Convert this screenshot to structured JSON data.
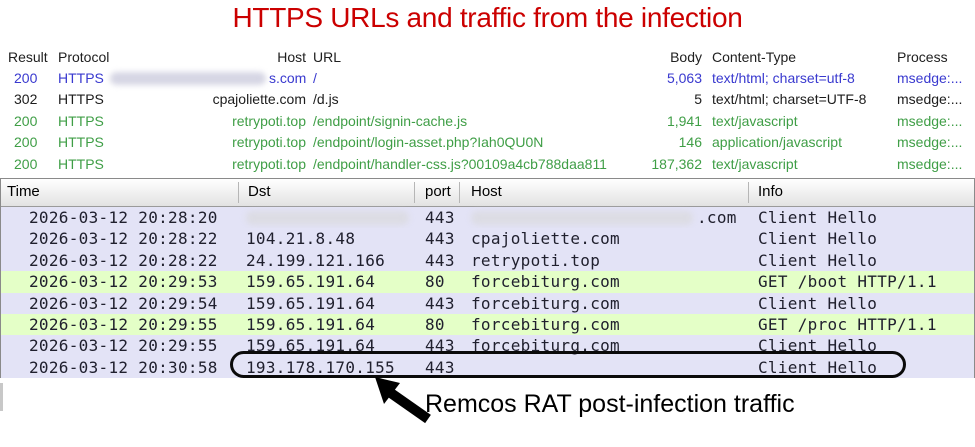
{
  "title": "HTTPS URLs and traffic from the infection",
  "annotation": "Remcos RAT post-infection traffic",
  "colors": {
    "title_red": "#CB0000",
    "fiddler_blue": "#3939CF",
    "fiddler_black": "#1C1C1C",
    "fiddler_green": "#3F9E46",
    "row_lavender": "#E3E3F6",
    "row_green": "#E4FFC7",
    "packet_text": "#20202E"
  },
  "fiddler": {
    "columns": [
      "Result",
      "Protocol",
      "Host",
      "URL",
      "Body",
      "Content-Type",
      "Process"
    ],
    "rows": [
      {
        "result": "200",
        "protocol": "HTTPS",
        "host": "",
        "host_redacted": true,
        "host_visible": "s.com",
        "url": "/",
        "body": "5,063",
        "content_type": "text/html; charset=utf-8",
        "process": "msedge:...",
        "color": "blue"
      },
      {
        "result": "302",
        "protocol": "HTTPS",
        "host": "cpajoliette.com",
        "host_redacted": false,
        "host_visible": "",
        "url": "/d.js",
        "body": "5",
        "content_type": "text/html; charset=UTF-8",
        "process": "msedge:...",
        "color": "black"
      },
      {
        "result": "200",
        "protocol": "HTTPS",
        "host": "retrypoti.top",
        "host_redacted": false,
        "host_visible": "",
        "url": "/endpoint/signin-cache.js",
        "body": "1,941",
        "content_type": "text/javascript",
        "process": "msedge:...",
        "color": "green"
      },
      {
        "result": "200",
        "protocol": "HTTPS",
        "host": "retrypoti.top",
        "host_redacted": false,
        "host_visible": "",
        "url": "/endpoint/login-asset.php?Iah0QU0N",
        "body": "146",
        "content_type": "application/javascript",
        "process": "msedge:...",
        "color": "green"
      },
      {
        "result": "200",
        "protocol": "HTTPS",
        "host": "retrypoti.top",
        "host_redacted": false,
        "host_visible": "",
        "url": "/endpoint/handler-css.js?00109a4cb788daa811",
        "body": "187,362",
        "content_type": "text/javascript",
        "process": "msedge:...",
        "color": "green"
      }
    ]
  },
  "wireshark": {
    "columns": [
      "Time",
      "Dst",
      "port",
      "Host",
      "Info"
    ],
    "rows": [
      {
        "time": "2026-03-12 20:28:20",
        "dst": "",
        "dst_redacted": true,
        "port": "443",
        "host": "",
        "host_redacted": true,
        "host_visible": ".com",
        "info": "Client Hello",
        "bg": "lavender",
        "circled": false
      },
      {
        "time": "2026-03-12 20:28:22",
        "dst": "104.21.8.48",
        "dst_redacted": false,
        "port": "443",
        "host": "cpajoliette.com",
        "host_redacted": false,
        "host_visible": "",
        "info": "Client Hello",
        "bg": "lavender",
        "circled": false
      },
      {
        "time": "2026-03-12 20:28:22",
        "dst": "24.199.121.166",
        "dst_redacted": false,
        "port": "443",
        "host": "retrypoti.top",
        "host_redacted": false,
        "host_visible": "",
        "info": "Client Hello",
        "bg": "lavender",
        "circled": false
      },
      {
        "time": "2026-03-12 20:29:53",
        "dst": "159.65.191.64",
        "dst_redacted": false,
        "port": "80",
        "host": "forcebiturg.com",
        "host_redacted": false,
        "host_visible": "",
        "info": "GET /boot HTTP/1.1",
        "bg": "green",
        "circled": false
      },
      {
        "time": "2026-03-12 20:29:54",
        "dst": "159.65.191.64",
        "dst_redacted": false,
        "port": "443",
        "host": "forcebiturg.com",
        "host_redacted": false,
        "host_visible": "",
        "info": "Client Hello",
        "bg": "lavender",
        "circled": false
      },
      {
        "time": "2026-03-12 20:29:55",
        "dst": "159.65.191.64",
        "dst_redacted": false,
        "port": "80",
        "host": "forcebiturg.com",
        "host_redacted": false,
        "host_visible": "",
        "info": "GET /proc HTTP/1.1",
        "bg": "green",
        "circled": false
      },
      {
        "time": "2026-03-12 20:29:55",
        "dst": "159.65.191.64",
        "dst_redacted": false,
        "port": "443",
        "host": "forcebiturg.com",
        "host_redacted": false,
        "host_visible": "",
        "info": "Client Hello",
        "bg": "lavender",
        "circled": false
      },
      {
        "time": "2026-03-12 20:30:58",
        "dst": "193.178.170.155",
        "dst_redacted": false,
        "port": "443",
        "host": "",
        "host_redacted": false,
        "host_visible": "",
        "info": "Client Hello",
        "bg": "lavender",
        "circled": true
      }
    ]
  }
}
